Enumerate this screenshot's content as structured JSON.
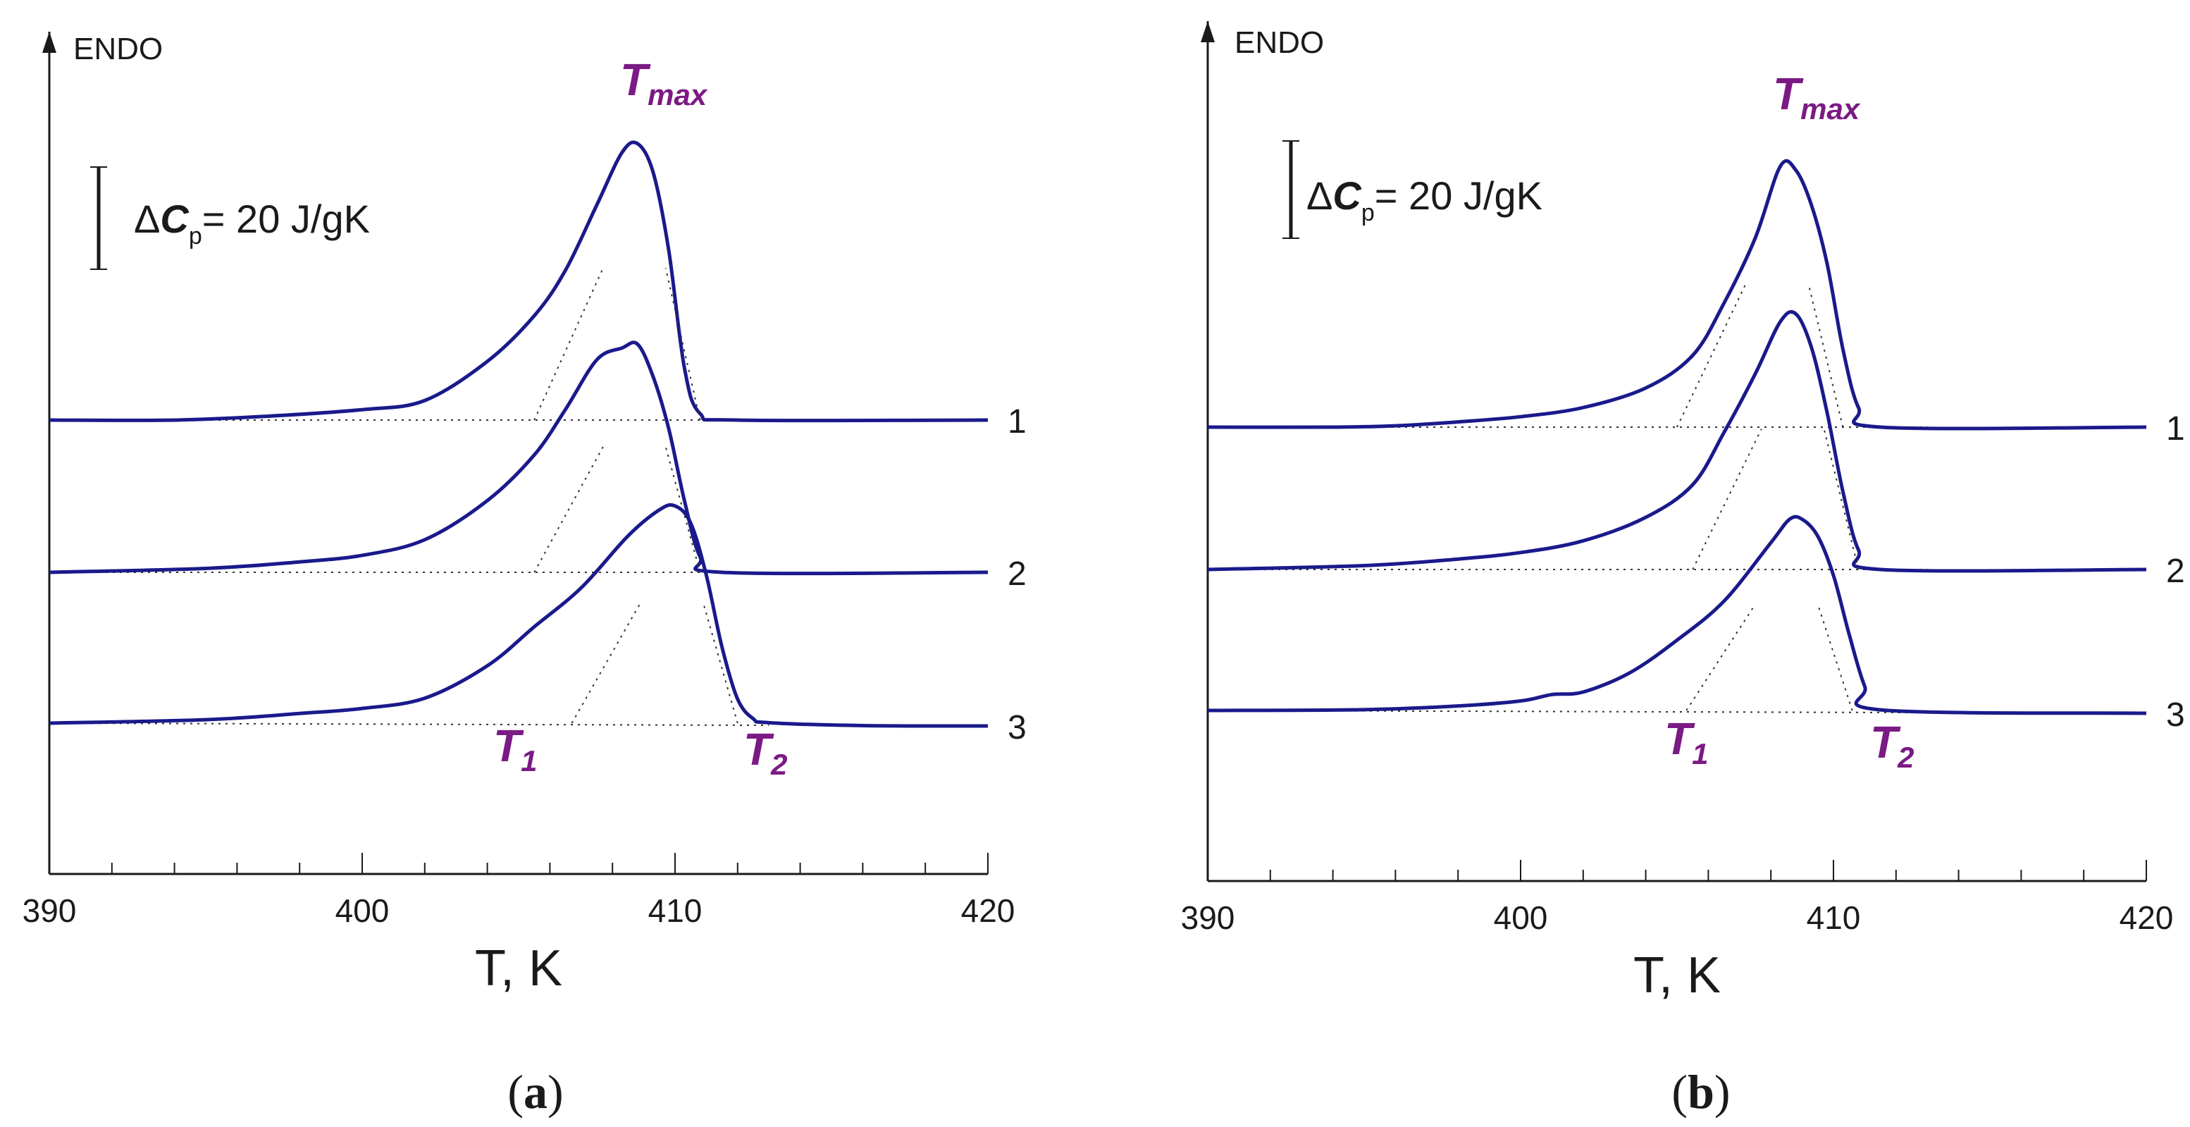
{
  "chart_data": [
    {
      "type": "line",
      "panel_caption": "(a)",
      "xlabel": "T, K",
      "ylabel": "ENDO",
      "xlim": [
        390,
        420
      ],
      "xticks": [
        390,
        400,
        410,
        420
      ],
      "scale_bar": {
        "symbol": "ΔC",
        "subscript": "p",
        "text": "= 20 J/gK",
        "value": 20,
        "unit": "J/gK"
      },
      "annotations": {
        "tmax": "T",
        "tmax_sub": "max",
        "t1": "T",
        "t1_sub": "1",
        "t2": "T",
        "t2_sub": "2"
      },
      "series": [
        {
          "name": "1",
          "baseline": 0,
          "points": [
            [
              390,
              0
            ],
            [
              394,
              0
            ],
            [
              397,
              3
            ],
            [
              400,
              8
            ],
            [
              402,
              15
            ],
            [
              404,
              45
            ],
            [
              405.5,
              80
            ],
            [
              406.5,
              115
            ],
            [
              407.5,
              165
            ],
            [
              408.3,
              205
            ],
            [
              408.8,
              212
            ],
            [
              409.3,
              190
            ],
            [
              409.8,
              130
            ],
            [
              410.3,
              40
            ],
            [
              410.8,
              5
            ],
            [
              412,
              0
            ],
            [
              420,
              0
            ]
          ]
        },
        {
          "name": "2",
          "baseline": 0,
          "points": [
            [
              390,
              0
            ],
            [
              395,
              3
            ],
            [
              398,
              8
            ],
            [
              400,
              13
            ],
            [
              402,
              25
            ],
            [
              404,
              55
            ],
            [
              405.5,
              90
            ],
            [
              406.5,
              125
            ],
            [
              407.5,
              163
            ],
            [
              408.3,
              172
            ],
            [
              408.8,
              175
            ],
            [
              409.3,
              150
            ],
            [
              409.8,
              110
            ],
            [
              410.3,
              55
            ],
            [
              410.8,
              12
            ],
            [
              411.5,
              0
            ],
            [
              420,
              0
            ]
          ]
        },
        {
          "name": "3",
          "baseline": 0,
          "points": [
            [
              390,
              0
            ],
            [
              395,
              3
            ],
            [
              398,
              8
            ],
            [
              400,
              12
            ],
            [
              402,
              20
            ],
            [
              404,
              45
            ],
            [
              405.5,
              75
            ],
            [
              407,
              105
            ],
            [
              408.5,
              145
            ],
            [
              409.5,
              165
            ],
            [
              410,
              168
            ],
            [
              410.5,
              155
            ],
            [
              411,
              115
            ],
            [
              411.5,
              60
            ],
            [
              412,
              20
            ],
            [
              412.5,
              5
            ],
            [
              413,
              2
            ],
            [
              416,
              0
            ],
            [
              420,
              0
            ]
          ]
        }
      ]
    },
    {
      "type": "line",
      "panel_caption": "(b)",
      "xlabel": "T, K",
      "ylabel": "ENDO",
      "xlim": [
        390,
        420
      ],
      "xticks": [
        390,
        400,
        410,
        420
      ],
      "scale_bar": {
        "symbol": "ΔC",
        "subscript": "p",
        "text": "= 20 J/gK",
        "value": 20,
        "unit": "J/gK"
      },
      "annotations": {
        "tmax": "T",
        "tmax_sub": "max",
        "t1": "T",
        "t1_sub": "1",
        "t2": "T",
        "t2_sub": "2"
      },
      "series": [
        {
          "name": "1",
          "baseline": 0,
          "points": [
            [
              390,
              0
            ],
            [
              394,
              0
            ],
            [
              396,
              1
            ],
            [
              398,
              4
            ],
            [
              400,
              8
            ],
            [
              402,
              15
            ],
            [
              404,
              30
            ],
            [
              405.5,
              55
            ],
            [
              406.5,
              95
            ],
            [
              407.5,
              145
            ],
            [
              408.3,
              200
            ],
            [
              408.8,
              197
            ],
            [
              409.3,
              170
            ],
            [
              409.8,
              125
            ],
            [
              410.3,
              60
            ],
            [
              410.8,
              15
            ],
            [
              411.5,
              0
            ],
            [
              420,
              0
            ]
          ]
        },
        {
          "name": "2",
          "baseline": 0,
          "points": [
            [
              390,
              0
            ],
            [
              395,
              3
            ],
            [
              398,
              8
            ],
            [
              400,
              13
            ],
            [
              402,
              22
            ],
            [
              404,
              40
            ],
            [
              405.5,
              65
            ],
            [
              406.5,
              105
            ],
            [
              407.5,
              150
            ],
            [
              408.3,
              190
            ],
            [
              408.8,
              196
            ],
            [
              409.3,
              170
            ],
            [
              409.8,
              120
            ],
            [
              410.3,
              60
            ],
            [
              410.8,
              15
            ],
            [
              411.5,
              0
            ],
            [
              420,
              0
            ]
          ]
        },
        {
          "name": "3",
          "baseline": 0,
          "points": [
            [
              390,
              0
            ],
            [
              395,
              1
            ],
            [
              398,
              4
            ],
            [
              400,
              8
            ],
            [
              401,
              13
            ],
            [
              402,
              15
            ],
            [
              403.5,
              30
            ],
            [
              405,
              55
            ],
            [
              406.5,
              85
            ],
            [
              408,
              130
            ],
            [
              408.6,
              148
            ],
            [
              409,
              148
            ],
            [
              409.5,
              135
            ],
            [
              410,
              105
            ],
            [
              410.5,
              60
            ],
            [
              411,
              20
            ],
            [
              411.5,
              2
            ],
            [
              420,
              0
            ]
          ]
        }
      ]
    }
  ]
}
